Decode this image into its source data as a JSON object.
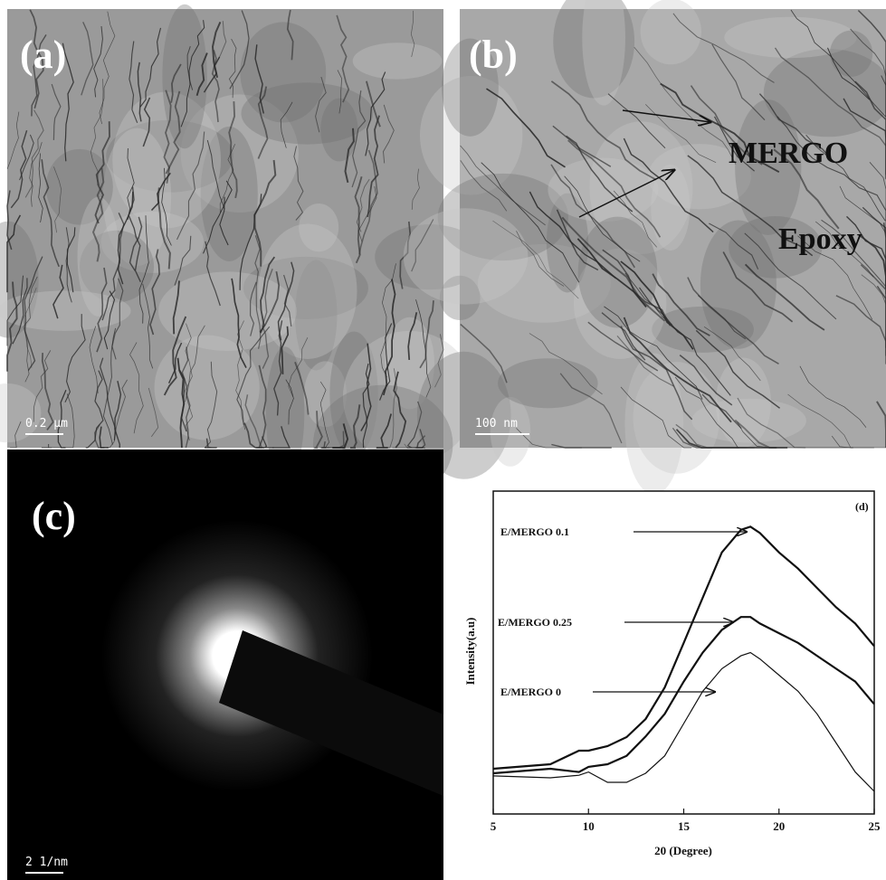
{
  "panels": {
    "a": {
      "label": "(a)",
      "scale_bar": "0.2 μm"
    },
    "b": {
      "label": "(b)",
      "scale_bar": "100 nm",
      "annotations": [
        "MERGO",
        "Epoxy"
      ]
    },
    "c": {
      "label": "(c)",
      "scale_bar": "2 1/nm"
    }
  },
  "chart_data": {
    "type": "line",
    "panel_label": "(d)",
    "xlabel": "20 (Degree)",
    "ylabel": "Intensity(a.u)",
    "x": [
      5,
      8,
      9.5,
      10,
      11,
      12,
      13,
      14,
      15,
      16,
      17,
      18,
      18.5,
      19,
      20,
      21,
      22,
      23,
      24,
      25
    ],
    "xlim": [
      5,
      25
    ],
    "xticks": [
      5,
      10,
      15,
      20,
      25
    ],
    "ylim": [
      0,
      100
    ],
    "series": [
      {
        "name": "E/MERGO 0.1",
        "color": "#111111",
        "values": [
          14,
          15.4,
          19.6,
          19.6,
          21,
          23.8,
          29.4,
          39.2,
          53,
          67,
          81,
          88,
          89,
          87,
          81,
          76,
          70,
          64,
          59,
          52
        ]
      },
      {
        "name": "E/MERGO 0.25",
        "color": "#111111",
        "values": [
          12.6,
          14,
          13,
          14.6,
          15.4,
          18,
          24,
          31,
          41,
          50,
          57,
          61,
          61,
          59,
          56,
          53,
          49,
          45,
          41,
          34
        ]
      },
      {
        "name": "E/MERGO 0",
        "color": "#111111",
        "values": [
          11.8,
          11.2,
          12,
          13,
          9.8,
          9.8,
          12.6,
          18,
          28,
          38,
          45,
          49,
          50,
          48,
          43,
          38,
          31,
          22,
          13,
          7
        ]
      }
    ]
  }
}
